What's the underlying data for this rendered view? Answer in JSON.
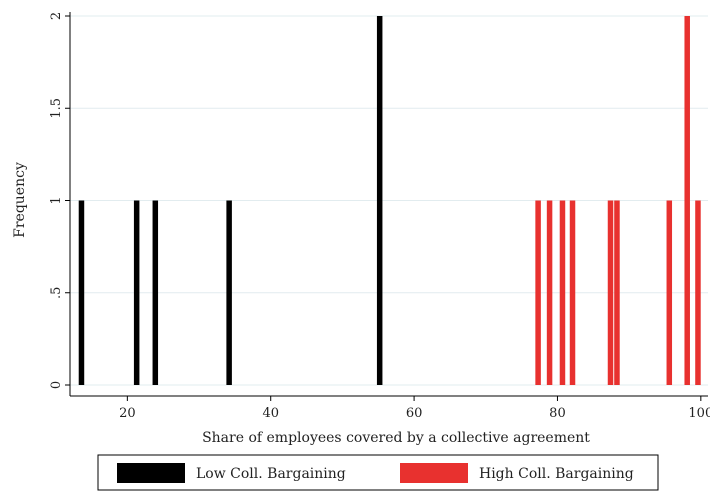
{
  "chart_data": {
    "type": "bar",
    "xlabel": "Share of employees covered by a collective agreement",
    "ylabel": "Frequency",
    "xlim": [
      12,
      101
    ],
    "ylim": [
      0,
      2
    ],
    "x_ticks": [
      20,
      40,
      60,
      80,
      100
    ],
    "y_ticks": [
      {
        "value": 0,
        "label": "0"
      },
      {
        "value": 0.5,
        "label": ".5"
      },
      {
        "value": 1,
        "label": "1"
      },
      {
        "value": 1.5,
        "label": "1.5"
      },
      {
        "value": 2,
        "label": "2"
      }
    ],
    "grid": true,
    "legend_position": "bottom",
    "series": [
      {
        "name": "Low Coll. Bargaining",
        "color": "#000000",
        "x": [
          13.6,
          21.3,
          23.9,
          34.2,
          55.2
        ],
        "values": [
          1,
          1,
          1,
          1,
          2
        ]
      },
      {
        "name": "High Coll. Bargaining",
        "color": "#e8312f",
        "x": [
          77.3,
          78.9,
          80.7,
          82.1,
          87.4,
          88.3,
          95.6,
          98.1,
          99.6
        ],
        "values": [
          1,
          1,
          1,
          1,
          1,
          1,
          1,
          2,
          1
        ]
      }
    ]
  }
}
